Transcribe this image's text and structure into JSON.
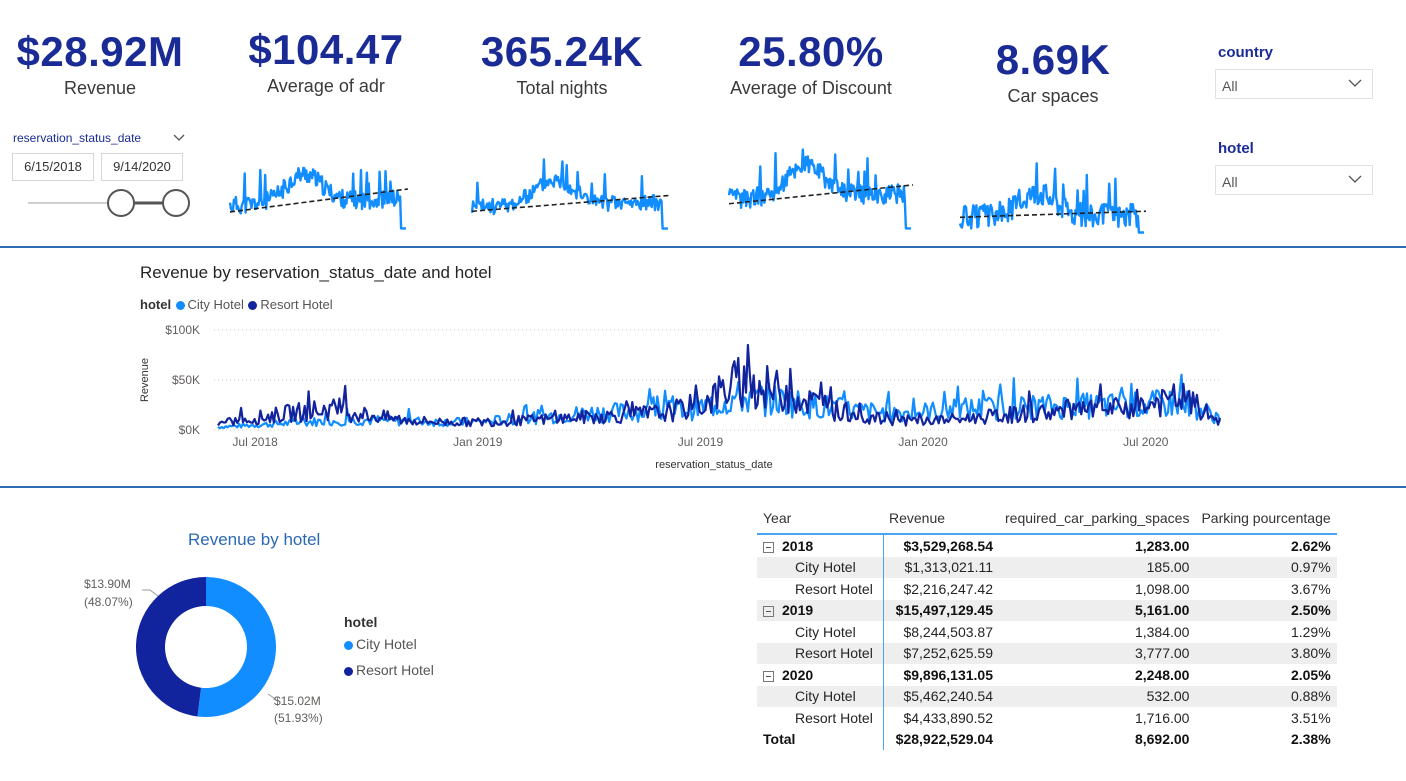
{
  "kpis": [
    {
      "value": "$28.92M",
      "label": "Revenue"
    },
    {
      "value": "$104.47",
      "label": "Average of adr"
    },
    {
      "value": "365.24K",
      "label": "Total nights"
    },
    {
      "value": "25.80%",
      "label": "Average of Discount"
    },
    {
      "value": "8.69K",
      "label": "Car spaces"
    }
  ],
  "slicers": {
    "country": {
      "title": "country",
      "value": "All"
    },
    "hotel": {
      "title": "hotel",
      "value": "All"
    },
    "date": {
      "field": "reservation_status_date",
      "start": "6/15/2018",
      "end": "9/14/2020"
    }
  },
  "colors": {
    "city": "#118dff",
    "resort": "#12239e",
    "accent": "#1b2b95",
    "divider": "#2d6cb5"
  },
  "line_chart": {
    "title": "Revenue by reservation_status_date and hotel",
    "legend_title": "hotel",
    "xlabel": "reservation_status_date",
    "ylabel": "Revenue",
    "y_ticks": [
      "$100K",
      "$50K",
      "$0K"
    ],
    "x_ticks": [
      "Jul 2018",
      "Jan 2019",
      "Jul 2019",
      "Jan 2020",
      "Jul 2020"
    ]
  },
  "chart_data": [
    {
      "type": "line",
      "title": "Revenue by reservation_status_date and hotel",
      "xlabel": "reservation_status_date",
      "ylabel": "Revenue",
      "ylim": [
        0,
        100000
      ],
      "x": [
        "2018-06",
        "2018-07",
        "2018-08",
        "2018-09",
        "2018-10",
        "2018-11",
        "2018-12",
        "2019-01",
        "2019-02",
        "2019-03",
        "2019-04",
        "2019-05",
        "2019-06",
        "2019-07",
        "2019-08",
        "2019-09",
        "2019-10",
        "2019-11",
        "2019-12",
        "2020-01",
        "2020-02",
        "2020-03",
        "2020-04",
        "2020-05",
        "2020-06",
        "2020-07",
        "2020-08",
        "2020-09"
      ],
      "series": [
        {
          "name": "City Hotel",
          "values": [
            3000,
            5000,
            7000,
            9000,
            10000,
            9000,
            8000,
            8000,
            11000,
            14000,
            17000,
            18000,
            19000,
            22000,
            32000,
            30000,
            25000,
            20000,
            17000,
            18000,
            21000,
            22000,
            23000,
            24000,
            24000,
            25000,
            28000,
            12000
          ]
        },
        {
          "name": "Resort Hotel",
          "values": [
            6000,
            12000,
            17000,
            21000,
            15000,
            10000,
            8000,
            8000,
            9000,
            11000,
            13000,
            15000,
            17000,
            25000,
            48000,
            40000,
            28000,
            15000,
            10000,
            9000,
            11000,
            14000,
            17000,
            19000,
            20000,
            24000,
            32000,
            8000
          ]
        }
      ]
    },
    {
      "type": "pie",
      "title": "Revenue by hotel",
      "legend_title": "hotel",
      "categories": [
        "City Hotel",
        "Resort Hotel"
      ],
      "values": [
        15.02,
        13.9
      ],
      "labels": [
        "$15.02M",
        "$13.90M"
      ],
      "pct_labels": [
        "(51.93%)",
        "(48.07%)"
      ]
    },
    {
      "type": "table",
      "columns": [
        "Year",
        "Revenue",
        "required_car_parking_spaces",
        "Parking pourcentage"
      ],
      "rows": [
        {
          "kind": "year",
          "label": "2018",
          "revenue": "$3,529,268.54",
          "parking": "1,283.00",
          "pct": "2.62%"
        },
        {
          "kind": "hotel",
          "label": "City Hotel",
          "revenue": "$1,313,021.11",
          "parking": "185.00",
          "pct": "0.97%"
        },
        {
          "kind": "hotel",
          "label": "Resort Hotel",
          "revenue": "$2,216,247.42",
          "parking": "1,098.00",
          "pct": "3.67%"
        },
        {
          "kind": "year",
          "label": "2019",
          "revenue": "$15,497,129.45",
          "parking": "5,161.00",
          "pct": "2.50%"
        },
        {
          "kind": "hotel",
          "label": "City Hotel",
          "revenue": "$8,244,503.87",
          "parking": "1,384.00",
          "pct": "1.29%"
        },
        {
          "kind": "hotel",
          "label": "Resort Hotel",
          "revenue": "$7,252,625.59",
          "parking": "3,777.00",
          "pct": "3.80%"
        },
        {
          "kind": "year",
          "label": "2020",
          "revenue": "$9,896,131.05",
          "parking": "2,248.00",
          "pct": "2.05%"
        },
        {
          "kind": "hotel",
          "label": "City Hotel",
          "revenue": "$5,462,240.54",
          "parking": "532.00",
          "pct": "0.88%"
        },
        {
          "kind": "hotel",
          "label": "Resort Hotel",
          "revenue": "$4,433,890.52",
          "parking": "1,716.00",
          "pct": "3.51%"
        },
        {
          "kind": "total",
          "label": "Total",
          "revenue": "$28,922,529.04",
          "parking": "8,692.00",
          "pct": "2.38%"
        }
      ]
    }
  ]
}
